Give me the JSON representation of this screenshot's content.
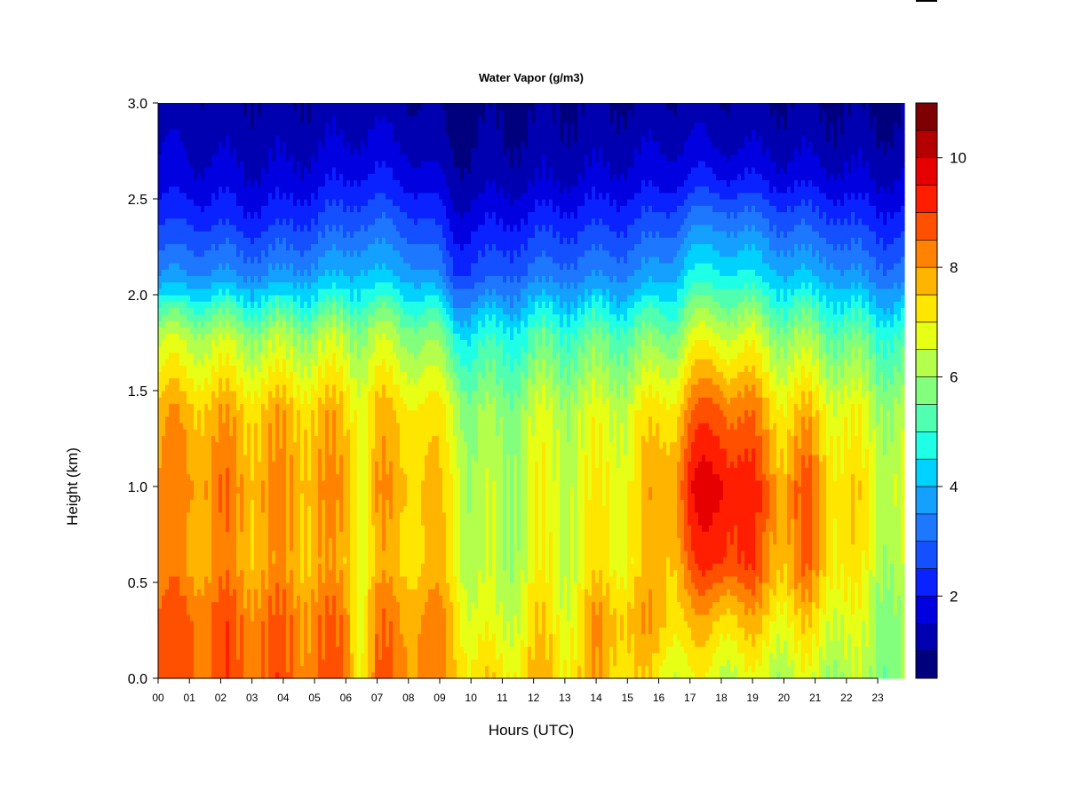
{
  "chart_data": {
    "type": "heatmap",
    "title": "Water Vapor (g/m3)",
    "xlabel": "Hours (UTC)",
    "ylabel": "Height (km)",
    "xlim": [
      0,
      23.85
    ],
    "ylim": [
      0,
      3.0
    ],
    "x_ticks": [
      "00",
      "01",
      "02",
      "03",
      "04",
      "05",
      "06",
      "07",
      "08",
      "09",
      "10",
      "11",
      "12",
      "13",
      "14",
      "15",
      "16",
      "17",
      "18",
      "19",
      "20",
      "21",
      "22",
      "23"
    ],
    "y_ticks": [
      "0.0",
      "0.5",
      "1.0",
      "1.5",
      "2.0",
      "2.5",
      "3.0"
    ],
    "colorbar": {
      "range": [
        0.5,
        11
      ],
      "ticks": [
        "2",
        "4",
        "6",
        "8",
        "10"
      ],
      "colors": [
        "#00007F",
        "#0000B0",
        "#0000E0",
        "#0A22FF",
        "#1450FF",
        "#1E78FF",
        "#14A0FF",
        "#00D2FF",
        "#1EFFE6",
        "#50FFAF",
        "#82FF7D",
        "#B4FF4B",
        "#E6FF14",
        "#FFE600",
        "#FFB400",
        "#FF8200",
        "#FF5000",
        "#FF1E00",
        "#E60000",
        "#B40000",
        "#7F0000"
      ]
    },
    "time_profiles": [
      {
        "x": 0.0,
        "values": [
          8.6,
          8.6,
          8.0,
          8.1,
          7.7,
          6.2,
          3.5,
          2.3,
          1.7,
          1.4,
          1.2
        ]
      },
      {
        "x": 1.0,
        "values": [
          8.7,
          8.7,
          8.0,
          8.2,
          7.8,
          6.3,
          3.6,
          2.4,
          1.7,
          1.4,
          1.2
        ]
      },
      {
        "x": 2.0,
        "values": [
          8.6,
          8.6,
          8.0,
          8.2,
          7.7,
          6.2,
          3.6,
          2.3,
          1.7,
          1.3,
          1.1
        ]
      },
      {
        "x": 3.0,
        "values": [
          8.6,
          8.5,
          7.9,
          8.0,
          7.6,
          6.0,
          3.5,
          2.2,
          1.6,
          1.3,
          1.1
        ]
      },
      {
        "x": 4.0,
        "values": [
          8.5,
          8.4,
          7.8,
          8.0,
          7.6,
          6.0,
          3.6,
          2.3,
          1.6,
          1.3,
          1.1
        ]
      },
      {
        "x": 5.0,
        "values": [
          8.5,
          8.4,
          7.8,
          8.0,
          7.6,
          6.1,
          3.8,
          2.5,
          1.8,
          1.4,
          1.1
        ]
      },
      {
        "x": 6.0,
        "values": [
          8.4,
          8.3,
          7.6,
          7.9,
          7.5,
          6.2,
          4.0,
          2.7,
          2.0,
          1.5,
          1.2
        ]
      },
      {
        "x": 6.5,
        "values": [
          7.2,
          7.0,
          7.1,
          7.0,
          7.1,
          6.0,
          4.2,
          2.9,
          2.1,
          1.6,
          1.2
        ]
      },
      {
        "x": 7.0,
        "values": [
          8.3,
          8.2,
          7.5,
          7.8,
          7.5,
          6.2,
          4.1,
          2.9,
          2.1,
          1.6,
          1.2
        ]
      },
      {
        "x": 8.0,
        "values": [
          8.3,
          8.2,
          7.6,
          7.8,
          7.4,
          6.0,
          3.9,
          2.7,
          1.9,
          1.4,
          1.1
        ]
      },
      {
        "x": 9.0,
        "values": [
          8.1,
          8.0,
          7.4,
          7.3,
          7.0,
          5.5,
          3.4,
          2.2,
          1.5,
          1.1,
          0.9
        ]
      },
      {
        "x": 9.5,
        "values": [
          7.8,
          7.6,
          7.1,
          7.0,
          6.6,
          4.8,
          2.6,
          1.7,
          1.2,
          0.9,
          0.7
        ]
      },
      {
        "x": 10.0,
        "values": [
          7.3,
          6.7,
          6.3,
          6.2,
          5.9,
          4.6,
          2.7,
          1.8,
          1.2,
          1.0,
          0.8
        ]
      },
      {
        "x": 11.0,
        "values": [
          7.1,
          6.4,
          6.1,
          6.1,
          5.8,
          4.7,
          2.9,
          1.9,
          1.3,
          1.0,
          0.9
        ]
      },
      {
        "x": 12.0,
        "values": [
          7.6,
          7.3,
          6.8,
          6.7,
          6.4,
          5.1,
          3.2,
          2.1,
          1.4,
          1.1,
          0.9
        ]
      },
      {
        "x": 13.0,
        "values": [
          7.3,
          6.9,
          6.6,
          6.6,
          6.4,
          5.2,
          3.3,
          2.2,
          1.5,
          1.2,
          1.0
        ]
      },
      {
        "x": 14.0,
        "values": [
          7.7,
          7.9,
          7.0,
          6.9,
          6.5,
          5.3,
          3.4,
          2.3,
          1.6,
          1.2,
          1.0
        ]
      },
      {
        "x": 15.0,
        "values": [
          7.5,
          7.8,
          7.1,
          7.1,
          6.7,
          5.4,
          3.5,
          2.4,
          1.7,
          1.3,
          1.0
        ]
      },
      {
        "x": 16.0,
        "values": [
          6.9,
          7.7,
          7.6,
          7.8,
          7.2,
          5.6,
          3.8,
          2.6,
          1.8,
          1.4,
          1.1
        ]
      },
      {
        "x": 16.5,
        "values": [
          6.8,
          7.6,
          7.9,
          8.3,
          7.5,
          5.8,
          4.0,
          2.8,
          1.9,
          1.4,
          1.1
        ]
      },
      {
        "x": 17.0,
        "values": [
          6.7,
          7.5,
          8.6,
          9.3,
          8.3,
          6.4,
          4.6,
          3.2,
          2.1,
          1.5,
          1.2
        ]
      },
      {
        "x": 18.0,
        "values": [
          6.6,
          7.6,
          9.3,
          9.9,
          8.8,
          6.7,
          4.7,
          3.3,
          2.1,
          1.4,
          1.1
        ]
      },
      {
        "x": 19.0,
        "values": [
          6.5,
          7.5,
          8.7,
          9.0,
          8.1,
          6.4,
          4.5,
          3.1,
          2.0,
          1.4,
          1.1
        ]
      },
      {
        "x": 20.0,
        "values": [
          6.4,
          7.1,
          7.9,
          8.0,
          7.3,
          5.9,
          4.1,
          2.8,
          1.8,
          1.3,
          1.0
        ]
      },
      {
        "x": 20.75,
        "values": [
          6.4,
          7.2,
          8.3,
          8.6,
          7.5,
          5.8,
          4.0,
          2.7,
          1.8,
          1.3,
          1.0
        ]
      },
      {
        "x": 21.5,
        "values": [
          6.3,
          6.9,
          7.5,
          7.6,
          7.0,
          5.6,
          3.9,
          2.6,
          1.7,
          1.2,
          1.0
        ]
      },
      {
        "x": 22.0,
        "values": [
          6.2,
          6.6,
          7.2,
          7.3,
          6.8,
          5.4,
          3.6,
          2.4,
          1.6,
          1.2,
          0.9
        ]
      },
      {
        "x": 23.0,
        "values": [
          6.0,
          6.1,
          6.5,
          6.7,
          6.3,
          5.1,
          3.3,
          2.2,
          1.5,
          1.1,
          0.9
        ]
      },
      {
        "x": 23.85,
        "values": [
          5.8,
          5.9,
          6.2,
          6.5,
          6.1,
          5.0,
          3.2,
          2.1,
          1.5,
          1.1,
          0.9
        ]
      }
    ],
    "profile_heights_km": [
      0.0,
      0.3,
      0.6,
      1.0,
      1.4,
      1.8,
      2.1,
      2.4,
      2.6,
      2.8,
      3.0
    ],
    "grid": false,
    "legend": "colorbar-right"
  }
}
